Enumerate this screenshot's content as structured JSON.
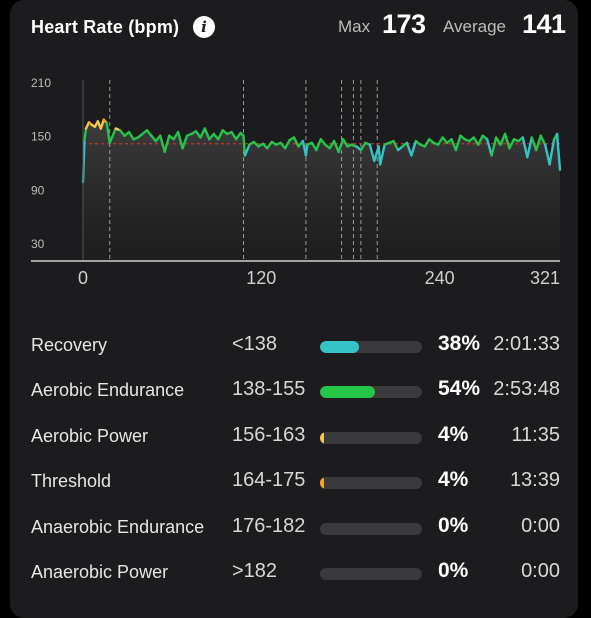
{
  "header": {
    "title": "Heart Rate (bpm)",
    "info_icon": "info-icon",
    "max_label": "Max",
    "max_value": "173",
    "avg_label": "Average",
    "avg_value": "141"
  },
  "chart_data": {
    "type": "line",
    "title": "Heart Rate (bpm)",
    "xlabel": "",
    "ylabel": "",
    "x_ticks": [
      "0",
      "120",
      "240",
      "321"
    ],
    "y_ticks": [
      "210",
      "150",
      "90",
      "30"
    ],
    "xlim": [
      0,
      321
    ],
    "ylim": [
      10,
      210
    ],
    "average_line": 141,
    "lap_markers": [
      18,
      108,
      150,
      174,
      182,
      187,
      198
    ],
    "series": [
      {
        "x": [
          0,
          1,
          2,
          4,
          6,
          8,
          10,
          12,
          14,
          16,
          18,
          20,
          22,
          25,
          28,
          31,
          34,
          37,
          40,
          43,
          46,
          49,
          52,
          55,
          58,
          61,
          64,
          67,
          70,
          73,
          76,
          79,
          82,
          85,
          88,
          91,
          94,
          97,
          100,
          103,
          106,
          108,
          109,
          112,
          115,
          118,
          121,
          124,
          127,
          130,
          133,
          136,
          139,
          142,
          145,
          148,
          150,
          151,
          154,
          157,
          160,
          163,
          166,
          169,
          172,
          175,
          178,
          181,
          184,
          187,
          190,
          193,
          196,
          199,
          200,
          203,
          206,
          209,
          212,
          215,
          218,
          221,
          224,
          227,
          230,
          233,
          236,
          239,
          242,
          245,
          248,
          251,
          254,
          257,
          260,
          263,
          266,
          269,
          272,
          275,
          278,
          281,
          284,
          287,
          290,
          293,
          296,
          299,
          302,
          305,
          308,
          311,
          314,
          317,
          319,
          321
        ],
        "values": [
          98,
          145,
          158,
          165,
          162,
          160,
          166,
          158,
          168,
          164,
          142,
          150,
          158,
          156,
          150,
          154,
          146,
          148,
          152,
          156,
          150,
          144,
          150,
          132,
          150,
          146,
          154,
          136,
          150,
          152,
          155,
          148,
          158,
          146,
          152,
          146,
          156,
          152,
          154,
          146,
          153,
          150,
          128,
          140,
          143,
          138,
          141,
          136,
          143,
          140,
          142,
          136,
          145,
          148,
          138,
          144,
          128,
          140,
          142,
          134,
          146,
          140,
          136,
          144,
          132,
          146,
          138,
          140,
          138,
          134,
          142,
          140,
          122,
          138,
          118,
          140,
          142,
          144,
          134,
          138,
          142,
          128,
          144,
          140,
          138,
          146,
          142,
          140,
          148,
          142,
          146,
          134,
          150,
          146,
          144,
          148,
          140,
          150,
          146,
          128,
          148,
          140,
          152,
          136,
          146,
          144,
          148,
          126,
          148,
          134,
          150,
          140,
          118,
          146,
          152,
          112
        ]
      }
    ],
    "colors": {
      "recovery": "#34c3c7",
      "aerobic_endurance": "#27c44a",
      "aerobic_power": "#f2c94c",
      "threshold": "#f5a623",
      "average_line": "#c0392b"
    }
  },
  "zones": [
    {
      "name": "Recovery",
      "range": "<138",
      "pct": "38%",
      "fraction": 0.38,
      "time": "2:01:33",
      "color": "#34c3c7"
    },
    {
      "name": "Aerobic Endurance",
      "range": "138-155",
      "pct": "54%",
      "fraction": 0.54,
      "time": "2:53:48",
      "color": "#27c44a"
    },
    {
      "name": "Aerobic Power",
      "range": "156-163",
      "pct": "4%",
      "fraction": 0.04,
      "time": "11:35",
      "color": "#f2c94c"
    },
    {
      "name": "Threshold",
      "range": "164-175",
      "pct": "4%",
      "fraction": 0.04,
      "time": "13:39",
      "color": "#f5a623"
    },
    {
      "name": "Anaerobic Endurance",
      "range": "176-182",
      "pct": "0%",
      "fraction": 0,
      "time": "0:00",
      "color": "#e74c3c"
    },
    {
      "name": "Anaerobic Power",
      "range": ">182",
      "pct": "0%",
      "fraction": 0,
      "time": "0:00",
      "color": "#c0392b"
    }
  ]
}
